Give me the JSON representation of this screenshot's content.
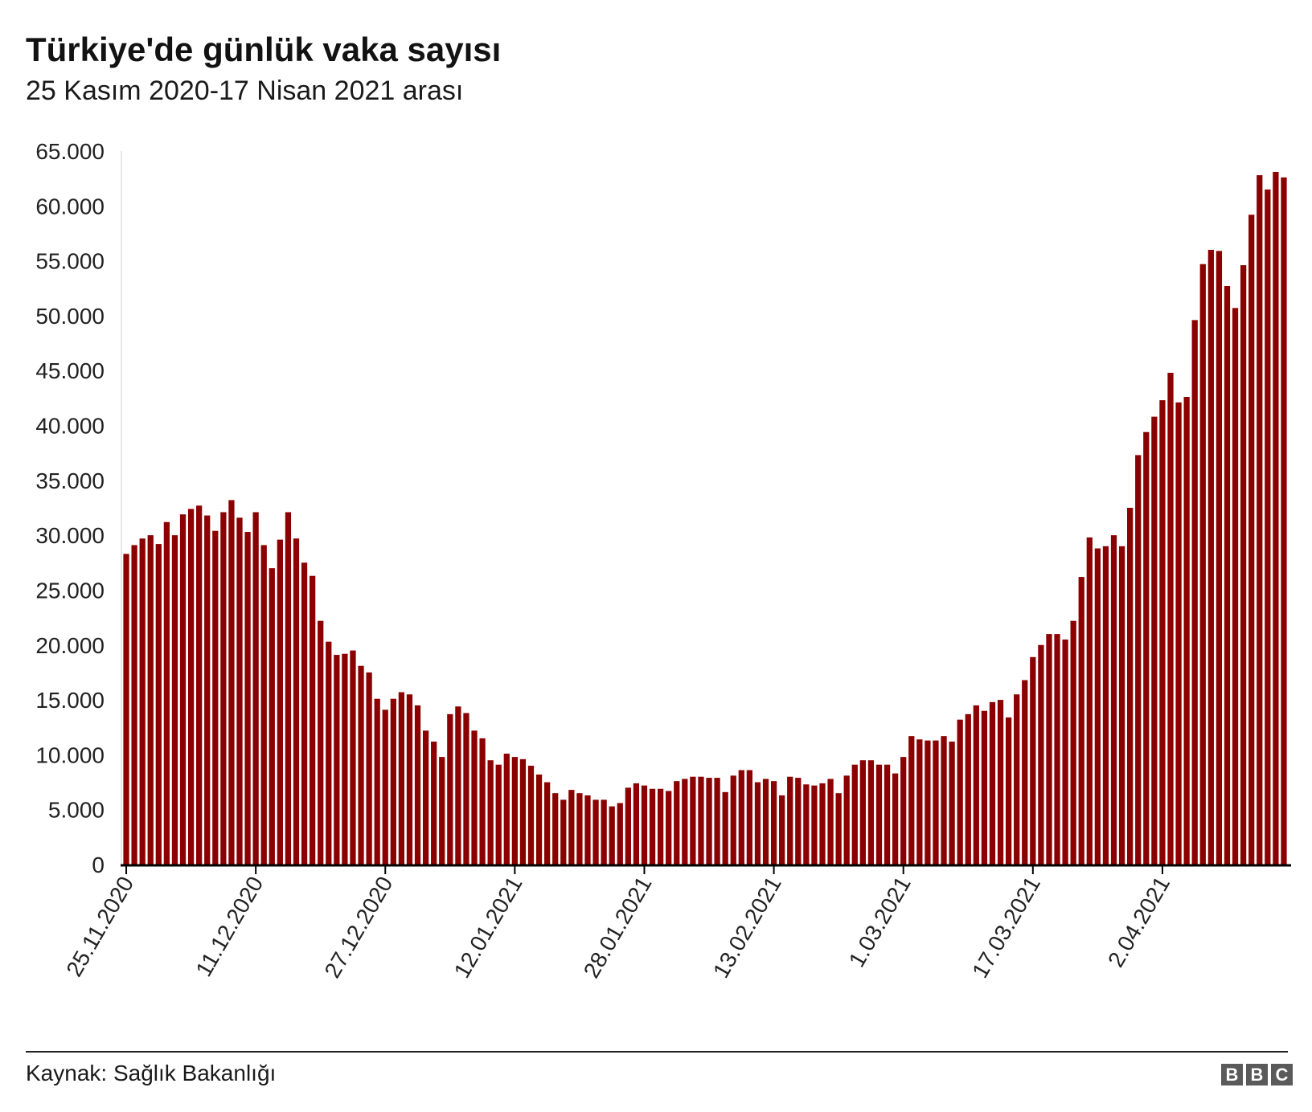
{
  "title": "Türkiye'de günlük vaka sayısı",
  "subtitle": "25 Kasım 2020-17 Nisan 2021 arası",
  "source": "Kaynak: Sağlık Bakanlığı",
  "logo_letters": [
    "B",
    "B",
    "C"
  ],
  "colors": {
    "bar": "#8b0000",
    "axis": "#000000",
    "text": "#222222"
  },
  "chart_data": {
    "type": "bar",
    "title": "Türkiye'de günlük vaka sayısı",
    "subtitle": "25 Kasım 2020-17 Nisan 2021 arası",
    "xlabel": "",
    "ylabel": "",
    "ylim": [
      0,
      65000
    ],
    "y_ticks": [
      0,
      5000,
      10000,
      15000,
      20000,
      25000,
      30000,
      35000,
      40000,
      45000,
      50000,
      55000,
      60000,
      65000
    ],
    "y_tick_labels": [
      "0",
      "5.000",
      "10.000",
      "15.000",
      "20.000",
      "25.000",
      "30.000",
      "35.000",
      "40.000",
      "45.000",
      "50.000",
      "55.000",
      "60.000",
      "65.000"
    ],
    "x_tick_labels": [
      {
        "index": 0,
        "label": "25.11.2020"
      },
      {
        "index": 16,
        "label": "11.12.2020"
      },
      {
        "index": 32,
        "label": "27.12.2020"
      },
      {
        "index": 48,
        "label": "12.01.2021"
      },
      {
        "index": 64,
        "label": "28.01.2021"
      },
      {
        "index": 80,
        "label": "13.02.2021"
      },
      {
        "index": 96,
        "label": "1.03.2021"
      },
      {
        "index": 112,
        "label": "17.03.2021"
      },
      {
        "index": 128,
        "label": "2.04.2021"
      }
    ],
    "grid": false,
    "legend": "none",
    "start_date": "25.11.2020",
    "end_date": "17.04.2021",
    "values": [
      28300,
      29100,
      29700,
      30000,
      29200,
      31200,
      30000,
      31900,
      32400,
      32700,
      31800,
      30400,
      32100,
      33200,
      31600,
      30300,
      32100,
      29100,
      27000,
      29600,
      32100,
      29700,
      27500,
      26300,
      22200,
      20300,
      19100,
      19200,
      19500,
      18100,
      17500,
      15100,
      14100,
      15100,
      15700,
      15500,
      14500,
      12200,
      11200,
      9800,
      13700,
      14400,
      13800,
      12200,
      11500,
      9500,
      9100,
      10100,
      9800,
      9600,
      9000,
      8200,
      7500,
      6500,
      5900,
      6800,
      6500,
      6300,
      5900,
      5900,
      5300,
      5600,
      7000,
      7400,
      7200,
      6900,
      6900,
      6700,
      7600,
      7800,
      8000,
      8000,
      7900,
      7900,
      6600,
      8100,
      8600,
      8600,
      7500,
      7800,
      7600,
      6300,
      8000,
      7900,
      7300,
      7200,
      7400,
      7800,
      6500,
      8100,
      9100,
      9500,
      9500,
      9100,
      9100,
      8300,
      9800,
      11700,
      11400,
      11300,
      11300,
      11700,
      11200,
      13200,
      13700,
      14500,
      14000,
      14800,
      15000,
      13400,
      15500,
      16800,
      18900,
      20000,
      21000,
      21000,
      20500,
      22200,
      26200,
      29800,
      28800,
      29000,
      30000,
      29000,
      32500,
      37300,
      39400,
      40800,
      42300,
      44800,
      42100,
      42600,
      49600,
      54700,
      56000,
      55900,
      52700,
      50700,
      54600,
      59200,
      62800,
      61500,
      63100,
      62600
    ]
  }
}
